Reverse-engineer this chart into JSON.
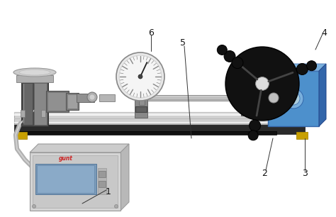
{
  "bg_color": "#ffffff",
  "rail_color": "#d8d8d8",
  "rail_dark": "#b0b0b0",
  "base_dark": "#222222",
  "foot_color": "#c8a000",
  "shaft_color": "#aaaaaa",
  "gray_dark": "#707070",
  "gray_mid": "#999999",
  "gray_light": "#c8c8c8",
  "blue_motor": "#4d90cc",
  "blue_dark": "#3366aa",
  "blue_light": "#7ab0dd",
  "black": "#111111",
  "white": "#ffffff",
  "label_color": "#111111",
  "cable_color": "#aaaaaa",
  "box_color": "#d5d5d5",
  "screen_color": "#8899bb",
  "red_brand": "#cc2222"
}
